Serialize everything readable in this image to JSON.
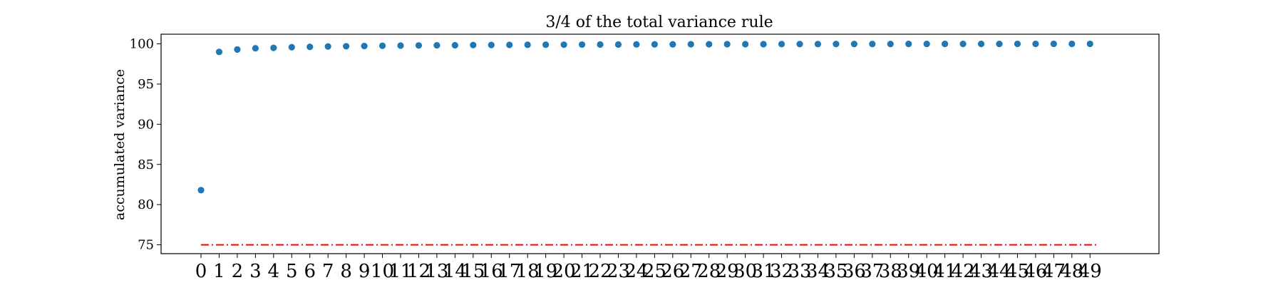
{
  "chart_data": {
    "type": "scatter",
    "title": "3/4 of the total variance rule",
    "xlabel": "",
    "ylabel": "accumulated variance",
    "x": [
      0,
      1,
      2,
      3,
      4,
      5,
      6,
      7,
      8,
      9,
      10,
      11,
      12,
      13,
      14,
      15,
      16,
      17,
      18,
      19,
      20,
      21,
      22,
      23,
      24,
      25,
      26,
      27,
      28,
      29,
      30,
      31,
      32,
      33,
      34,
      35,
      36,
      37,
      38,
      39,
      40,
      41,
      42,
      43,
      44,
      45,
      46,
      47,
      48,
      49
    ],
    "y": [
      81.8,
      99.0,
      99.3,
      99.45,
      99.5,
      99.58,
      99.63,
      99.67,
      99.7,
      99.73,
      99.76,
      99.78,
      99.8,
      99.82,
      99.83,
      99.85,
      99.86,
      99.87,
      99.88,
      99.89,
      99.9,
      99.91,
      99.92,
      99.92,
      99.93,
      99.94,
      99.94,
      99.95,
      99.95,
      99.96,
      99.96,
      99.96,
      99.97,
      99.97,
      99.97,
      99.98,
      99.98,
      99.98,
      99.98,
      99.99,
      99.99,
      99.99,
      99.99,
      99.99,
      99.99,
      100.0,
      100.0,
      100.0,
      100.0,
      100.0
    ],
    "xticks": [
      "0",
      "1",
      "2",
      "3",
      "4",
      "5",
      "6",
      "7",
      "8",
      "9",
      "10",
      "11",
      "12",
      "13",
      "14",
      "15",
      "16",
      "17",
      "18",
      "19",
      "20",
      "21",
      "22",
      "23",
      "24",
      "25",
      "26",
      "27",
      "28",
      "29",
      "30",
      "31",
      "32",
      "33",
      "34",
      "35",
      "36",
      "37",
      "38",
      "39",
      "40",
      "41",
      "42",
      "43",
      "44",
      "45",
      "46",
      "47",
      "48",
      "49"
    ],
    "yticks": [
      75,
      80,
      85,
      90,
      95,
      100
    ],
    "xlim": [
      -2.2,
      52.8
    ],
    "ylim": [
      73.9,
      101.2
    ],
    "threshold": {
      "value": 75,
      "x_range": [
        0,
        49.5
      ],
      "color": "#ff0000",
      "style": "dash-dot"
    },
    "marker_color": "#1f77b4",
    "grid": false,
    "legend": "none"
  }
}
